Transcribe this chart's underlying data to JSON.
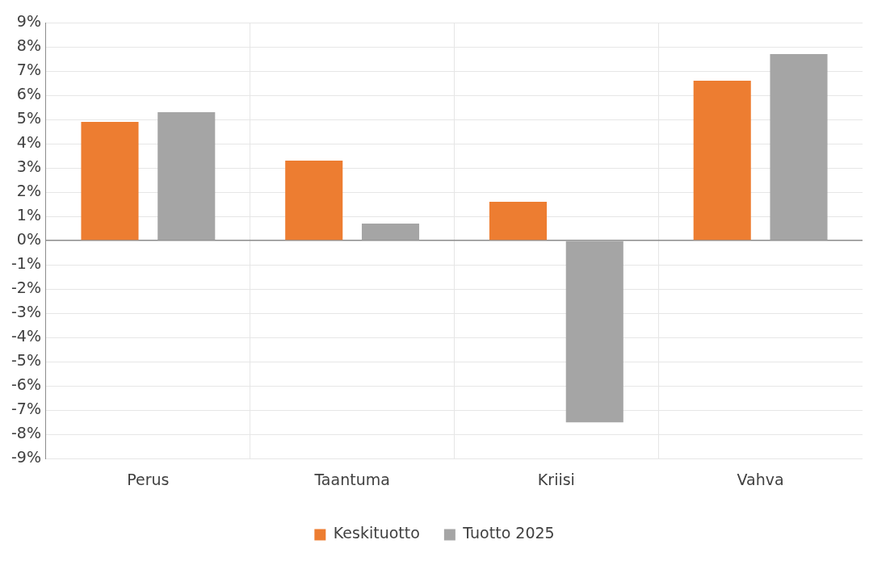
{
  "chart_data": {
    "type": "bar",
    "categories": [
      "Perus",
      "Taantuma",
      "Kriisi",
      "Vahva"
    ],
    "series": [
      {
        "name": "Keskituotto",
        "color": "#ed7d31",
        "values": [
          4.9,
          3.3,
          1.6,
          6.6
        ]
      },
      {
        "name": "Tuotto 2025",
        "color": "#a5a5a5",
        "values": [
          5.3,
          0.7,
          -7.5,
          7.7
        ]
      }
    ],
    "ylim": [
      -9,
      9
    ],
    "yticks": [
      {
        "value": -9,
        "label": "-9%"
      },
      {
        "value": -8,
        "label": "-8%"
      },
      {
        "value": -7,
        "label": "-7%"
      },
      {
        "value": -6,
        "label": "-6%"
      },
      {
        "value": -5,
        "label": "-5%"
      },
      {
        "value": -4,
        "label": "-4%"
      },
      {
        "value": -3,
        "label": "-3%"
      },
      {
        "value": -2,
        "label": "-2%"
      },
      {
        "value": -1,
        "label": "-1%"
      },
      {
        "value": 0,
        "label": "0%"
      },
      {
        "value": 1,
        "label": "1%"
      },
      {
        "value": 2,
        "label": "2%"
      },
      {
        "value": 3,
        "label": "3%"
      },
      {
        "value": 4,
        "label": "4%"
      },
      {
        "value": 5,
        "label": "5%"
      },
      {
        "value": 6,
        "label": "6%"
      },
      {
        "value": 7,
        "label": "7%"
      },
      {
        "value": 8,
        "label": "8%"
      },
      {
        "value": 9,
        "label": "9%"
      }
    ],
    "grid": true,
    "legend": "bottom"
  }
}
